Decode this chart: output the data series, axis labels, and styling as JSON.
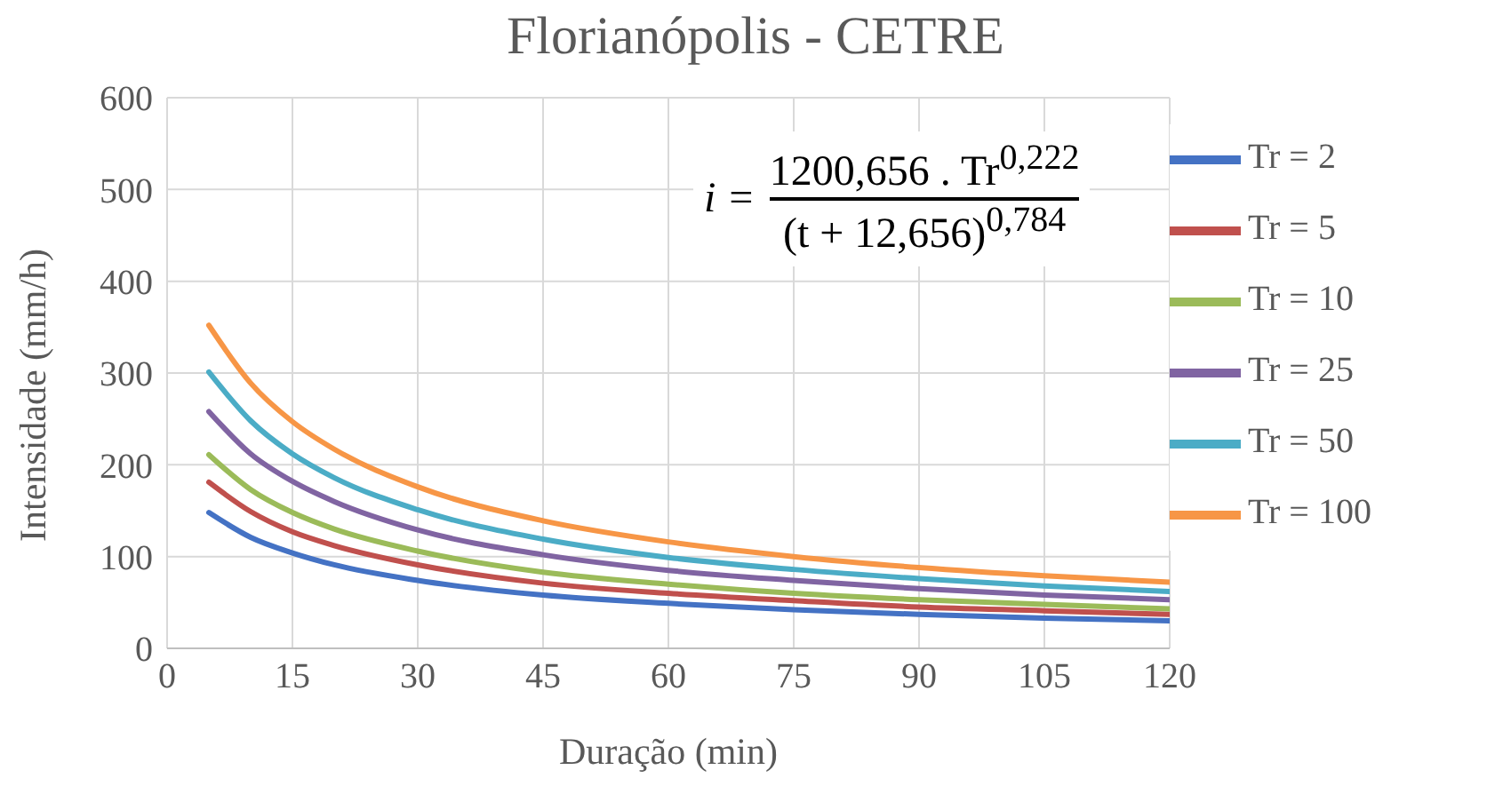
{
  "chart_data": {
    "type": "line",
    "title": "Florianópolis - CETRE",
    "xlabel": "Duração (min)",
    "ylabel": "Intensidade (mm/h)",
    "x": [
      5,
      10,
      15,
      20,
      30,
      45,
      60,
      75,
      90,
      105,
      120
    ],
    "series": [
      {
        "name": "Tr = 2",
        "color": "#4472c4",
        "values": [
          148,
          121,
          104,
          91,
          74,
          58,
          49,
          42,
          37,
          33,
          30
        ]
      },
      {
        "name": "Tr = 5",
        "color": "#c0504d",
        "values": [
          181,
          149,
          127,
          112,
          91,
          71,
          60,
          52,
          45,
          41,
          37
        ]
      },
      {
        "name": "Tr = 10",
        "color": "#9bbb59",
        "values": [
          211,
          173,
          148,
          130,
          106,
          83,
          70,
          60,
          53,
          48,
          43
        ]
      },
      {
        "name": "Tr = 25",
        "color": "#8064a2",
        "values": [
          258,
          212,
          182,
          160,
          129,
          102,
          85,
          74,
          65,
          58,
          53
        ]
      },
      {
        "name": "Tr = 50",
        "color": "#4bacc6",
        "values": [
          301,
          248,
          212,
          186,
          151,
          119,
          99,
          86,
          76,
          68,
          62
        ]
      },
      {
        "name": "Tr = 100",
        "color": "#f79646",
        "values": [
          352,
          289,
          247,
          217,
          176,
          139,
          116,
          100,
          88,
          79,
          72
        ]
      }
    ],
    "xlim": [
      0,
      120
    ],
    "xticks": [
      0,
      15,
      30,
      45,
      60,
      75,
      90,
      105,
      120
    ],
    "ylim": [
      0,
      600
    ],
    "yticks": [
      0,
      100,
      200,
      300,
      400,
      500,
      600
    ],
    "grid": true,
    "legend": "top right",
    "marker": "none",
    "line_style": "solid",
    "annotations": [
      "i =",
      "1200,656 . Tr$^{0,222}$",
      "(t + 12,656)$^{0,784}$"
    ]
  }
}
